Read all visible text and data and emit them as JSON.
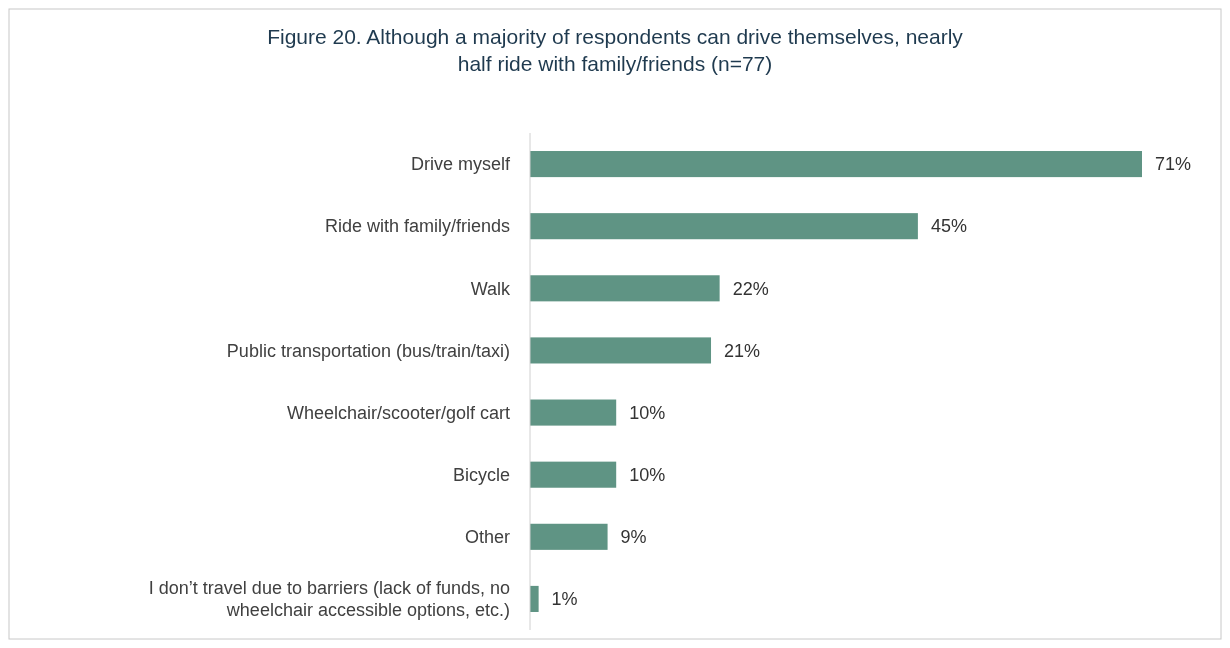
{
  "chart_data": {
    "type": "bar",
    "orientation": "horizontal",
    "title": "Figure 20. Although a majority of respondents can drive themselves, nearly half ride with family/friends (n=77)",
    "categories": [
      "Drive myself",
      "Ride with family/friends",
      "Walk",
      "Public transportation (bus/train/taxi)",
      "Wheelchair/scooter/golf cart",
      "Bicycle",
      "Other",
      "I don’t travel due to barriers (lack of funds, no wheelchair accessible options, etc.)"
    ],
    "series": [
      {
        "color": "#5f9484",
        "values": [
          71,
          45,
          22,
          21,
          10,
          10,
          9,
          1
        ],
        "value_labels": [
          "71%",
          "45%",
          "22%",
          "21%",
          "10%",
          "10%",
          "9%",
          "1%"
        ]
      }
    ]
  }
}
